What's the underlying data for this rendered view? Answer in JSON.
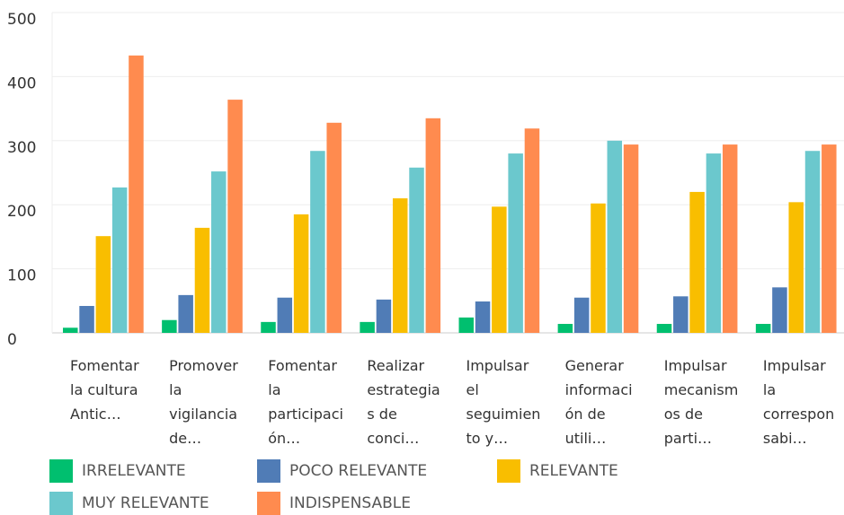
{
  "chart_data": {
    "type": "bar",
    "categories": [
      "Fomentar la cultura Antic…",
      "Promover la vigilancia de…",
      "Fomentar la participación…",
      "Realizar estrategias de conci…",
      "Impulsar el seguimiento y…",
      "Generar información de utili…",
      "Impulsar mecanismos de parti…",
      "Impulsar la corresponsabi…"
    ],
    "series": [
      {
        "name": "IRRELEVANTE",
        "color": "#00bf6f",
        "values": [
          8,
          20,
          17,
          17,
          24,
          14,
          14,
          14
        ]
      },
      {
        "name": "POCO RELEVANTE",
        "color": "#507cb6",
        "values": [
          42,
          59,
          55,
          52,
          49,
          55,
          57,
          71
        ]
      },
      {
        "name": "RELEVANTE",
        "color": "#f9be00",
        "values": [
          151,
          164,
          185,
          210,
          197,
          202,
          220,
          204
        ]
      },
      {
        "name": "MUY RELEVANTE",
        "color": "#6bc8cd",
        "values": [
          227,
          252,
          284,
          258,
          280,
          300,
          280,
          284
        ]
      },
      {
        "name": "INDISPENSABLE",
        "color": "#ff8b4f",
        "values": [
          433,
          364,
          328,
          335,
          319,
          294,
          294,
          294
        ]
      }
    ],
    "ylim": [
      0,
      500
    ],
    "yticks": [
      0,
      100,
      200,
      300,
      400,
      500
    ],
    "grid": true
  }
}
